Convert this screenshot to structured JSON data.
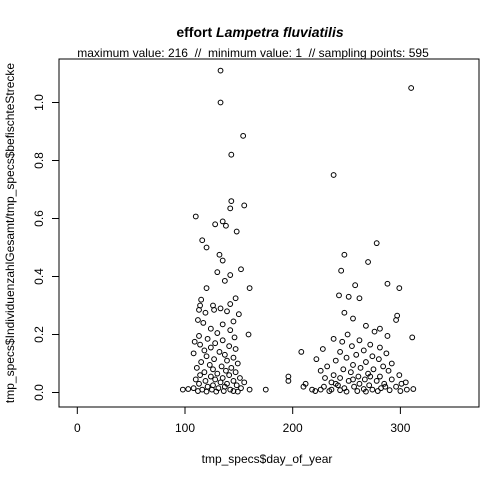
{
  "chart_data": {
    "type": "scatter",
    "title_prefix": "effort ",
    "title_italic": "Lampetra fluviatilis",
    "subtitle": "maximum value: 216  //  minimum value: 1  // sampling points: 595",
    "xlabel": "tmp_specs$day_of_year",
    "ylabel": "tmp_specs$IndividuenzahlGesamt/tmp_specs$befischteStrecke",
    "xlim": [
      -17,
      373
    ],
    "ylim": [
      -0.05,
      1.15
    ],
    "xticks": [
      0,
      100,
      200,
      300
    ],
    "yticks": [
      0.0,
      0.2,
      0.4,
      0.6,
      0.8,
      1.0
    ],
    "ytick_labels": [
      "0.0",
      "0.2",
      "0.4",
      "0.6",
      "0.8",
      "1.0"
    ],
    "grid": false,
    "legend": "none",
    "marker": "open-circle",
    "points": [
      [
        133,
        1.11
      ],
      [
        133,
        1.0
      ],
      [
        154,
        0.885
      ],
      [
        143,
        0.82
      ],
      [
        143,
        0.66
      ],
      [
        142,
        0.635
      ],
      [
        155,
        0.645
      ],
      [
        110,
        0.607
      ],
      [
        135,
        0.59
      ],
      [
        128,
        0.58
      ],
      [
        138,
        0.575
      ],
      [
        148,
        0.555
      ],
      [
        116,
        0.525
      ],
      [
        120,
        0.5
      ],
      [
        132,
        0.475
      ],
      [
        135,
        0.455
      ],
      [
        152,
        0.425
      ],
      [
        130,
        0.415
      ],
      [
        142,
        0.405
      ],
      [
        137,
        0.385
      ],
      [
        160,
        0.36
      ],
      [
        120,
        0.36
      ],
      [
        115,
        0.32
      ],
      [
        147,
        0.325
      ],
      [
        114,
        0.3
      ],
      [
        126,
        0.3
      ],
      [
        142,
        0.305
      ],
      [
        133,
        0.29
      ],
      [
        113,
        0.285
      ],
      [
        127,
        0.285
      ],
      [
        139,
        0.28
      ],
      [
        119,
        0.275
      ],
      [
        150,
        0.27
      ],
      [
        112,
        0.25
      ],
      [
        145,
        0.245
      ],
      [
        117,
        0.24
      ],
      [
        135,
        0.235
      ],
      [
        124,
        0.22
      ],
      [
        142,
        0.215
      ],
      [
        130,
        0.205
      ],
      [
        159,
        0.2
      ],
      [
        113,
        0.195
      ],
      [
        146,
        0.19
      ],
      [
        121,
        0.185
      ],
      [
        135,
        0.18
      ],
      [
        109,
        0.175
      ],
      [
        128,
        0.17
      ],
      [
        114,
        0.165
      ],
      [
        141,
        0.16
      ],
      [
        124,
        0.155
      ],
      [
        147,
        0.15
      ],
      [
        118,
        0.145
      ],
      [
        132,
        0.14
      ],
      [
        108,
        0.135
      ],
      [
        137,
        0.13
      ],
      [
        120,
        0.125
      ],
      [
        145,
        0.12
      ],
      [
        127,
        0.115
      ],
      [
        139,
        0.11
      ],
      [
        115,
        0.105
      ],
      [
        149,
        0.1
      ],
      [
        123,
        0.095
      ],
      [
        134,
        0.09
      ],
      [
        111,
        0.085
      ],
      [
        143,
        0.085
      ],
      [
        126,
        0.08
      ],
      [
        138,
        0.075
      ],
      [
        118,
        0.07
      ],
      [
        147,
        0.07
      ],
      [
        130,
        0.065
      ],
      [
        114,
        0.06
      ],
      [
        141,
        0.06
      ],
      [
        124,
        0.055
      ],
      [
        135,
        0.05
      ],
      [
        151,
        0.05
      ],
      [
        110,
        0.045
      ],
      [
        128,
        0.045
      ],
      [
        145,
        0.04
      ],
      [
        119,
        0.04
      ],
      [
        133,
        0.035
      ],
      [
        155,
        0.035
      ],
      [
        113,
        0.03
      ],
      [
        139,
        0.03
      ],
      [
        126,
        0.025
      ],
      [
        148,
        0.025
      ],
      [
        121,
        0.02
      ],
      [
        137,
        0.02
      ],
      [
        108,
        0.015
      ],
      [
        131,
        0.015
      ],
      [
        152,
        0.015
      ],
      [
        116,
        0.01
      ],
      [
        142,
        0.01
      ],
      [
        125,
        0.01
      ],
      [
        160,
        0.01
      ],
      [
        98,
        0.01
      ],
      [
        103,
        0.012
      ],
      [
        112,
        0.005
      ],
      [
        136,
        0.005
      ],
      [
        145,
        0.005
      ],
      [
        120,
        0.003
      ],
      [
        129,
        0.003
      ],
      [
        149,
        0.003
      ],
      [
        175,
        0.01
      ],
      [
        196,
        0.055
      ],
      [
        196,
        0.04
      ],
      [
        208,
        0.14
      ],
      [
        210,
        0.02
      ],
      [
        212,
        0.03
      ],
      [
        218,
        0.01
      ],
      [
        221,
        0.005
      ],
      [
        310,
        1.05
      ],
      [
        238,
        0.75
      ],
      [
        278,
        0.515
      ],
      [
        248,
        0.475
      ],
      [
        270,
        0.45
      ],
      [
        245,
        0.42
      ],
      [
        258,
        0.37
      ],
      [
        288,
        0.375
      ],
      [
        299,
        0.36
      ],
      [
        243,
        0.335
      ],
      [
        252,
        0.33
      ],
      [
        262,
        0.325
      ],
      [
        248,
        0.275
      ],
      [
        256,
        0.255
      ],
      [
        297,
        0.265
      ],
      [
        296,
        0.25
      ],
      [
        268,
        0.23
      ],
      [
        281,
        0.22
      ],
      [
        276,
        0.21
      ],
      [
        251,
        0.2
      ],
      [
        288,
        0.195
      ],
      [
        311,
        0.19
      ],
      [
        238,
        0.185
      ],
      [
        262,
        0.18
      ],
      [
        246,
        0.175
      ],
      [
        272,
        0.165
      ],
      [
        255,
        0.16
      ],
      [
        281,
        0.155
      ],
      [
        228,
        0.15
      ],
      [
        266,
        0.145
      ],
      [
        244,
        0.14
      ],
      [
        287,
        0.135
      ],
      [
        259,
        0.13
      ],
      [
        274,
        0.125
      ],
      [
        250,
        0.12
      ],
      [
        280,
        0.115
      ],
      [
        222,
        0.115
      ],
      [
        240,
        0.11
      ],
      [
        268,
        0.105
      ],
      [
        292,
        0.1
      ],
      [
        256,
        0.095
      ],
      [
        232,
        0.09
      ],
      [
        284,
        0.09
      ],
      [
        263,
        0.085
      ],
      [
        247,
        0.08
      ],
      [
        275,
        0.08
      ],
      [
        226,
        0.075
      ],
      [
        289,
        0.075
      ],
      [
        254,
        0.07
      ],
      [
        270,
        0.065
      ],
      [
        238,
        0.06
      ],
      [
        299,
        0.06
      ],
      [
        261,
        0.055
      ],
      [
        281,
        0.055
      ],
      [
        244,
        0.05
      ],
      [
        230,
        0.05
      ],
      [
        292,
        0.045
      ],
      [
        267,
        0.045
      ],
      [
        252,
        0.04
      ],
      [
        278,
        0.04
      ],
      [
        236,
        0.035
      ],
      [
        305,
        0.035
      ],
      [
        262,
        0.03
      ],
      [
        285,
        0.03
      ],
      [
        242,
        0.025
      ],
      [
        271,
        0.025
      ],
      [
        229,
        0.02
      ],
      [
        296,
        0.02
      ],
      [
        257,
        0.02
      ],
      [
        248,
        0.015
      ],
      [
        282,
        0.015
      ],
      [
        266,
        0.012
      ],
      [
        236,
        0.01
      ],
      [
        306,
        0.01
      ],
      [
        274,
        0.01
      ],
      [
        244,
        0.008
      ],
      [
        290,
        0.008
      ],
      [
        260,
        0.005
      ],
      [
        234,
        0.005
      ],
      [
        279,
        0.005
      ],
      [
        300,
        0.005
      ],
      [
        268,
        0.003
      ],
      [
        250,
        0.003
      ],
      [
        312,
        0.012
      ],
      [
        226,
        0.01
      ],
      [
        286,
        0.02
      ],
      [
        240,
        0.03
      ],
      [
        256,
        0.045
      ],
      [
        272,
        0.055
      ],
      [
        301,
        0.03
      ]
    ]
  }
}
